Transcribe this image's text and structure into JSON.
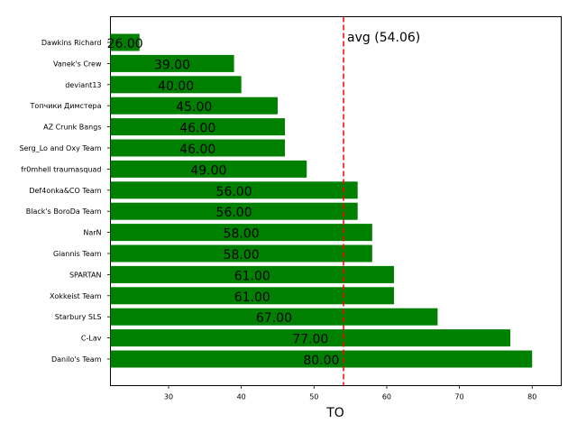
{
  "chart_data": {
    "type": "bar",
    "orientation": "horizontal",
    "categories": [
      "Dawkins Richard",
      "Vanek's Crew",
      "deviant13",
      "Топчики Димстера",
      "AZ Crunk Bangs",
      "Serg_Lo and Oxy Team",
      "fr0mhell traumasquad",
      "Def4onka&CO Team",
      "Black's BoroDa Team",
      "NarN",
      "Giannis Team",
      "SPARTAN",
      "Xokkeist Team",
      "Starbury SLS",
      "C-Lav",
      "Danilo's Team"
    ],
    "values": [
      26,
      39,
      40,
      45,
      46,
      46,
      49,
      56,
      56,
      58,
      58,
      61,
      61,
      67,
      77,
      80
    ],
    "value_labels": [
      "26.00",
      "39.00",
      "40.00",
      "45.00",
      "46.00",
      "46.00",
      "49.00",
      "56.00",
      "56.00",
      "58.00",
      "58.00",
      "61.00",
      "61.00",
      "67.00",
      "77.00",
      "80.00"
    ],
    "xlabel": "TO",
    "ylabel": "",
    "xlim": [
      22,
      84
    ],
    "xticks": [
      30,
      40,
      50,
      60,
      70,
      80
    ],
    "bar_color": "#008000",
    "avg_value": 54.06,
    "avg_label": "avg (54.06)",
    "avg_color": "#ff0000",
    "grid": false
  }
}
